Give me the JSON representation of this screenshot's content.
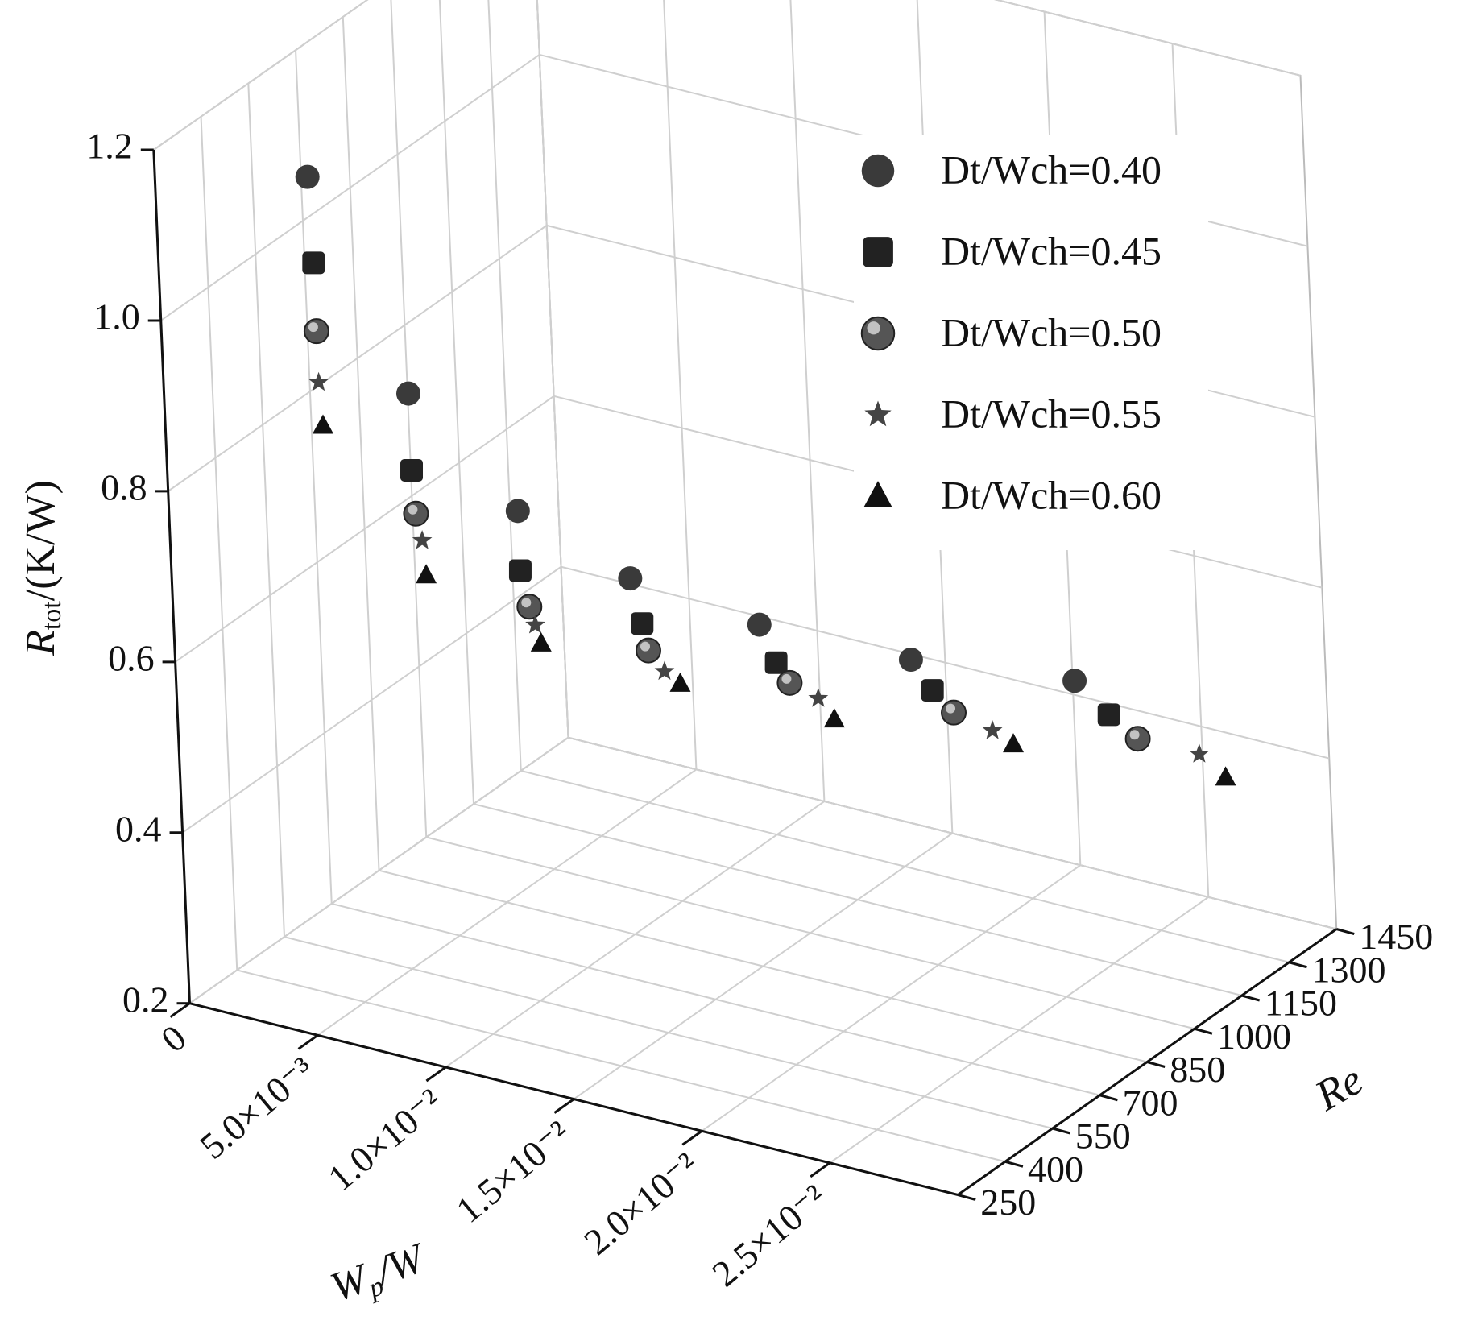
{
  "chart_data": {
    "type": "scatter3d",
    "xlabel": [
      "W",
      "p",
      "/W"
    ],
    "ylabel": "Re",
    "zlabel": [
      "R",
      "tot",
      "/(K/W)"
    ],
    "xlim": [
      0,
      0.03
    ],
    "ylim": [
      250,
      1450
    ],
    "zlim": [
      0.2,
      1.2
    ],
    "xticks": [
      0,
      {
        "value": 0.005,
        "label": "5.0×10⁻³"
      },
      {
        "value": 0.01,
        "label": "1.0×10⁻²"
      },
      {
        "value": 0.015,
        "label": "1.5×10⁻²"
      },
      {
        "value": 0.02,
        "label": "2.0×10⁻²"
      },
      {
        "value": 0.025,
        "label": "2.5×10⁻²"
      }
    ],
    "yticks": [
      250,
      400,
      550,
      700,
      850,
      1000,
      1150,
      1300,
      1450
    ],
    "zticks": [
      0.2,
      0.4,
      0.6,
      0.8,
      {
        "value": 1,
        "label": "1.0"
      },
      1.2
    ],
    "grid": true,
    "legend": "upper right",
    "series": [
      {
        "name": "Dt/Wch=0.40",
        "marker": "circle",
        "color": "#3a3a3a",
        "x": [
          0.0041,
          0.0058,
          0.008,
          0.0104,
          0.0135,
          0.0175,
          0.022
        ],
        "y": [
          400,
          550,
          700,
          850,
          1000,
          1150,
          1300
        ],
        "values": [
          1.16,
          0.88,
          0.72,
          0.62,
          0.55,
          0.5,
          0.47
        ]
      },
      {
        "name": "Dt/Wch=0.45",
        "marker": "square",
        "color": "#222222",
        "x": [
          0.0042,
          0.0058,
          0.008,
          0.0108,
          0.0141,
          0.0183,
          0.0233
        ],
        "y": [
          400,
          550,
          700,
          850,
          1000,
          1150,
          1300
        ],
        "values": [
          1.06,
          0.79,
          0.65,
          0.57,
          0.51,
          0.47,
          0.44
        ]
      },
      {
        "name": "Dt/Wch=0.50",
        "marker": "sphere",
        "color": "#555555",
        "x": [
          0.0042,
          0.0059,
          0.0083,
          0.011,
          0.0146,
          0.0191,
          0.0244
        ],
        "y": [
          400,
          550,
          700,
          850,
          1000,
          1150,
          1300
        ],
        "values": [
          0.98,
          0.74,
          0.61,
          0.54,
          0.49,
          0.45,
          0.42
        ]
      },
      {
        "name": "Dt/Wch=0.55",
        "marker": "star",
        "color": "#444444",
        "x": [
          0.0042,
          0.0061,
          0.0085,
          0.0116,
          0.0157,
          0.0206,
          0.0268
        ],
        "y": [
          400,
          550,
          700,
          850,
          1000,
          1150,
          1300
        ],
        "values": [
          0.92,
          0.71,
          0.59,
          0.52,
          0.48,
          0.44,
          0.42
        ]
      },
      {
        "name": "Dt/Wch=0.60",
        "marker": "triangle",
        "color": "#111111",
        "x": [
          0.0043,
          0.0062,
          0.0087,
          0.0122,
          0.0163,
          0.0214,
          0.0278
        ],
        "y": [
          400,
          550,
          700,
          850,
          1000,
          1150,
          1300
        ],
        "values": [
          0.87,
          0.67,
          0.57,
          0.51,
          0.46,
          0.43,
          0.4
        ]
      }
    ]
  }
}
